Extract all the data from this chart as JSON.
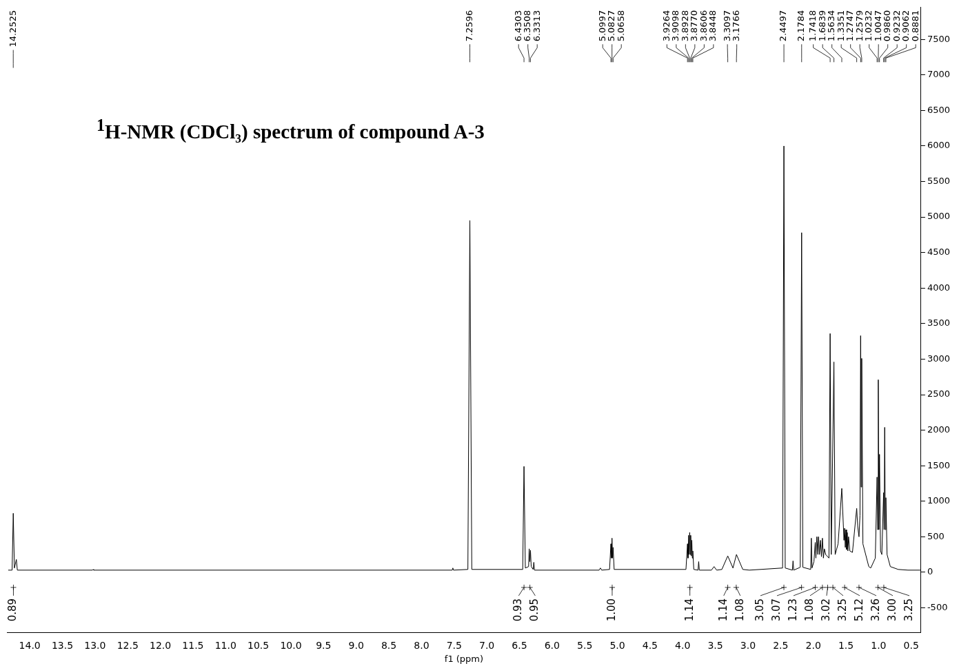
{
  "chart_data": {
    "type": "line",
    "title": "$^{1}$H-NMR (CDCl₃) spectrum of compound A-3",
    "xlabel": "f1 (ppm)",
    "xlim": [
      14.35,
      0.35
    ],
    "ylim": [
      -850,
      7950
    ],
    "xticks": [
      {
        "value": 14,
        "label": "14.0"
      },
      {
        "value": 13.5,
        "label": "13.5"
      },
      {
        "value": 13,
        "label": "13.0"
      },
      {
        "value": 12.5,
        "label": "12.5"
      },
      {
        "value": 12,
        "label": "12.0"
      },
      {
        "value": 11.5,
        "label": "11.5"
      },
      {
        "value": 11,
        "label": "11.0"
      },
      {
        "value": 10.5,
        "label": "10.5"
      },
      {
        "value": 10,
        "label": "10.0"
      },
      {
        "value": 9.5,
        "label": "9.5"
      },
      {
        "value": 9,
        "label": "9.0"
      },
      {
        "value": 8.5,
        "label": "8.5"
      },
      {
        "value": 8,
        "label": "8.0"
      },
      {
        "value": 7.5,
        "label": "7.5"
      },
      {
        "value": 7,
        "label": "7.0"
      },
      {
        "value": 6.5,
        "label": "6.5"
      },
      {
        "value": 6,
        "label": "6.0"
      },
      {
        "value": 5.5,
        "label": "5.5"
      },
      {
        "value": 5,
        "label": "5.0"
      },
      {
        "value": 4.5,
        "label": "4.5"
      },
      {
        "value": 4,
        "label": "4.0"
      },
      {
        "value": 3.5,
        "label": "3.5"
      },
      {
        "value": 3,
        "label": "3.0"
      },
      {
        "value": 2.5,
        "label": "2.5"
      },
      {
        "value": 2,
        "label": "2.0"
      },
      {
        "value": 1.5,
        "label": "1.5"
      },
      {
        "value": 1,
        "label": "1.0"
      },
      {
        "value": 0.5,
        "label": "0.5"
      }
    ],
    "yticks": [
      -500,
      0,
      500,
      1000,
      1500,
      2000,
      2500,
      3000,
      3500,
      4000,
      4500,
      5000,
      5500,
      6000,
      6500,
      7000,
      7500
    ],
    "grid": false,
    "legend": false,
    "series": [
      {
        "color": "#000000",
        "x": [
          14.33,
          14.27,
          14.2525,
          14.235,
          14.205,
          14.19,
          13.04,
          13.03,
          13.02,
          7.53,
          7.52,
          7.51,
          7.29,
          7.2596,
          7.23,
          6.45,
          6.4303,
          6.41,
          6.36,
          6.3508,
          6.342,
          6.3313,
          6.32,
          6.29,
          6.28,
          6.27,
          5.28,
          5.26,
          5.24,
          5.12,
          5.0997,
          5.09,
          5.0827,
          5.074,
          5.0658,
          5.05,
          3.95,
          3.9264,
          3.918,
          3.9098,
          3.901,
          3.8928,
          3.884,
          3.877,
          3.868,
          3.8606,
          3.852,
          3.8448,
          3.83,
          3.765,
          3.755,
          3.745,
          3.56,
          3.52,
          3.48,
          3.4,
          3.3097,
          3.23,
          3.1766,
          3.08,
          2.98,
          2.47,
          2.4497,
          2.43,
          2.32,
          2.31,
          2.3,
          2.2,
          2.1784,
          2.16,
          2.04,
          2.03,
          2.02,
          1.99,
          1.97,
          1.96,
          1.945,
          1.93,
          1.92,
          1.905,
          1.89,
          1.875,
          1.86,
          1.845,
          1.83,
          1.81,
          1.76,
          1.7418,
          1.725,
          1.6839,
          1.665,
          1.62,
          1.5634,
          1.53,
          1.52,
          1.51,
          1.5,
          1.49,
          1.48,
          1.47,
          1.46,
          1.44,
          1.4,
          1.3351,
          1.32,
          1.3,
          1.285,
          1.2747,
          1.266,
          1.2579,
          1.24,
          1.15,
          1.12,
          1.05,
          1.0232,
          1.014,
          1.0047,
          0.995,
          0.986,
          0.97,
          0.95,
          0.9232,
          0.915,
          0.9062,
          0.897,
          0.8881,
          0.87,
          0.82,
          0.7,
          0.55,
          0.36
        ],
        "values": [
          30,
          30,
          830,
          60,
          180,
          30,
          30,
          40,
          30,
          30,
          60,
          30,
          40,
          4950,
          40,
          40,
          1490,
          60,
          80,
          330,
          150,
          310,
          80,
          40,
          140,
          30,
          30,
          60,
          30,
          40,
          400,
          200,
          480,
          200,
          350,
          40,
          40,
          400,
          200,
          520,
          250,
          560,
          250,
          520,
          230,
          450,
          200,
          300,
          40,
          30,
          150,
          30,
          30,
          80,
          30,
          40,
          230,
          60,
          250,
          40,
          30,
          60,
          6000,
          60,
          30,
          160,
          30,
          70,
          4780,
          70,
          40,
          480,
          60,
          150,
          420,
          200,
          500,
          250,
          500,
          250,
          450,
          220,
          480,
          200,
          330,
          250,
          200,
          3360,
          250,
          2960,
          250,
          400,
          1180,
          450,
          620,
          350,
          600,
          320,
          560,
          300,
          500,
          300,
          280,
          900,
          650,
          500,
          800,
          3330,
          1200,
          3010,
          400,
          80,
          60,
          200,
          1340,
          600,
          2710,
          600,
          1660,
          300,
          250,
          1120,
          600,
          2040,
          600,
          1050,
          250,
          80,
          40,
          30,
          30
        ]
      }
    ],
    "annotations": [
      "14.2525",
      "7.2596",
      "6.4303",
      "6.3508",
      "6.3313",
      "5.0997",
      "5.0827",
      "5.0658",
      "3.9264",
      "3.9098",
      "3.8928",
      "3.8770",
      "3.8606",
      "3.8448",
      "3.3097",
      "3.1766",
      "2.4497",
      "2.1784",
      "1.7418",
      "1.6839",
      "1.5634",
      "1.3351",
      "1.2747",
      "1.2579",
      "1.0232",
      "1.0047",
      "0.9860",
      "0.9232",
      "0.9062",
      "0.8881",
      "0.89",
      "0.93",
      "0.95",
      "1.00",
      "1.14",
      "1.14",
      "1.08",
      "3.05",
      "3.07",
      "1.23",
      "1.08",
      "3.02",
      "3.25",
      "5.12",
      "3.26",
      "3.00",
      "3.25"
    ]
  }
}
